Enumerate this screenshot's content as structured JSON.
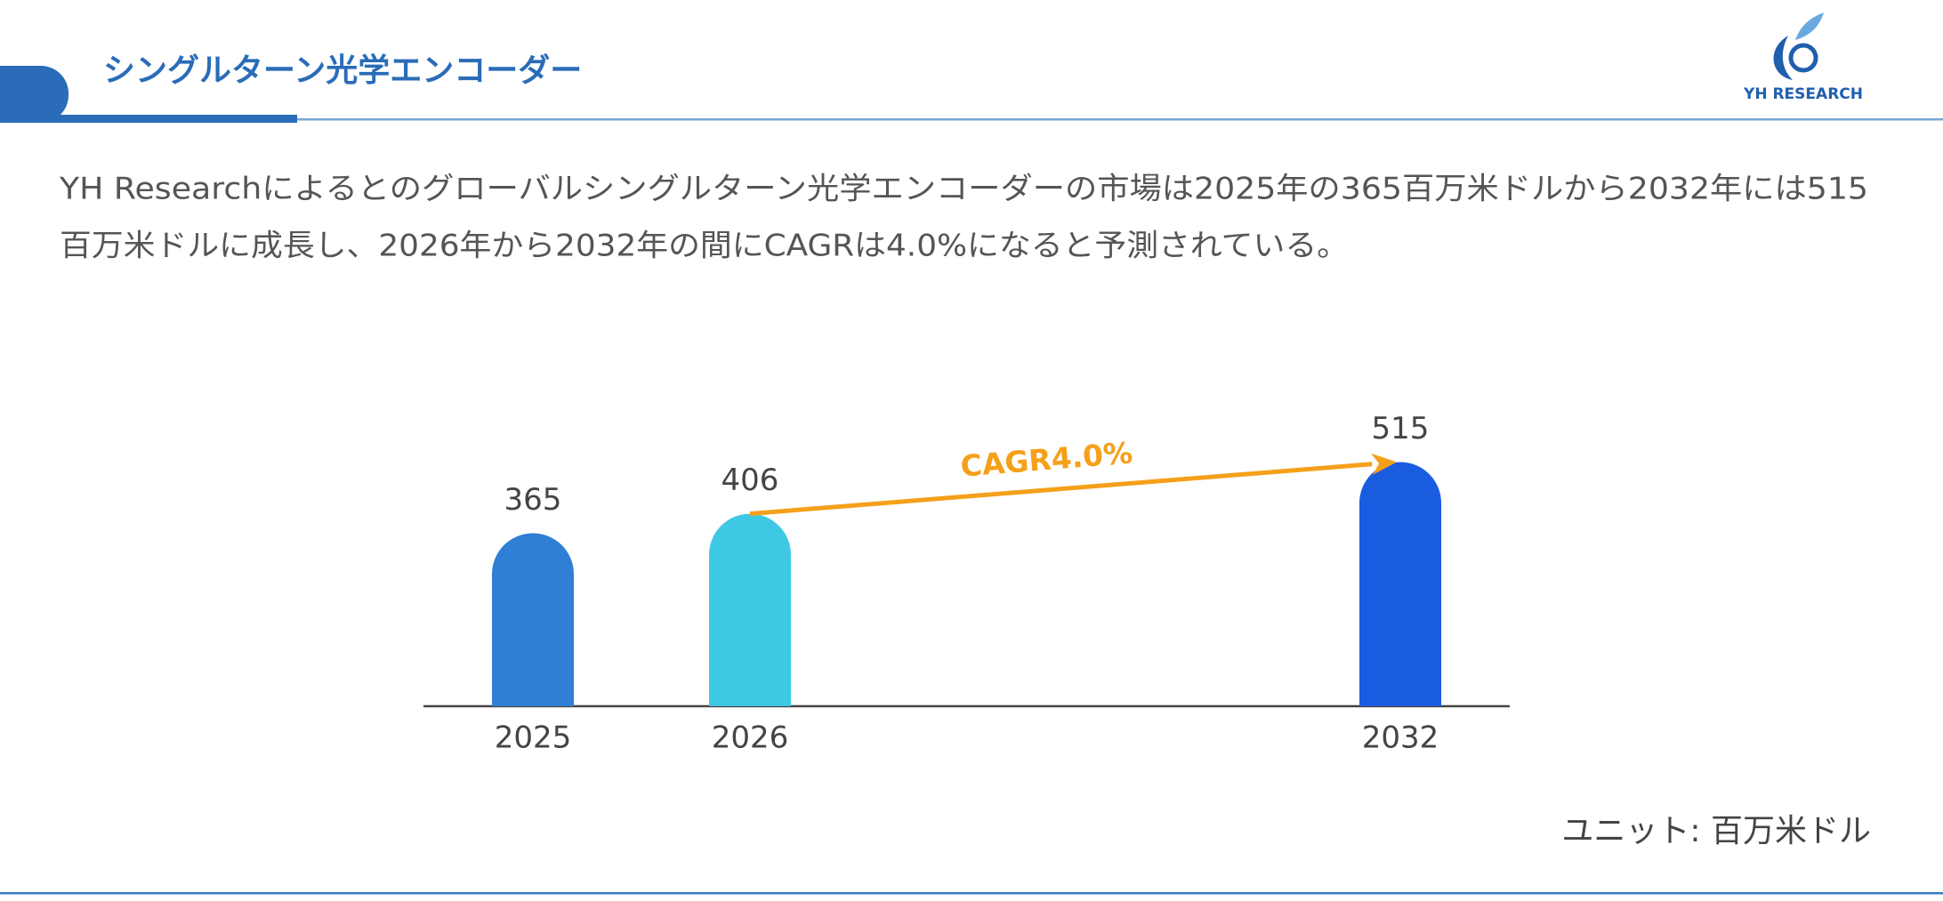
{
  "header": {
    "title": "シングルターン光学エンコーダー",
    "logo": "YH RESEARCH"
  },
  "description": [
    "YH Researchによるとのグローバルシングルターン光学エンコーダーの市場は2025年の365百万米ドルから2032年には515",
    "百万米ドルに成長し、2026年から2032年の間にCAGRは4.0%になると予測されている。"
  ],
  "chart_data": {
    "type": "bar",
    "categories": [
      "2025",
      "2026",
      "2032"
    ],
    "values": [
      365,
      406,
      515
    ],
    "colors": [
      "#2f7fd4",
      "#3ec8e4",
      "#1a5ce0"
    ],
    "annotation": "CAGR4.0%",
    "annotation_color": "#f5a01a",
    "unit_label": "ユニット: 百万米ドル"
  }
}
